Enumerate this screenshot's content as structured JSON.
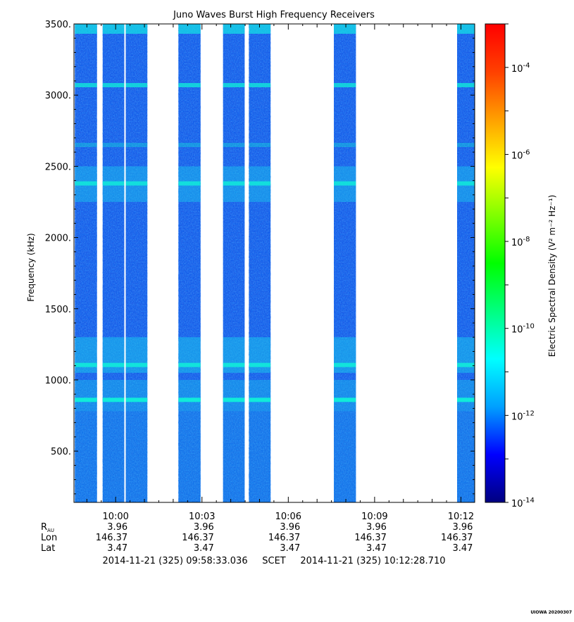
{
  "chart_data": {
    "type": "heatmap",
    "title": "Juno Waves Burst High Frequency Receivers",
    "ylabel": "Frequency (kHz)",
    "ylim": [
      140,
      3500
    ],
    "y_ticks": [
      {
        "value": 500,
        "label": "500."
      },
      {
        "value": 1000,
        "label": "1000."
      },
      {
        "value": 1500,
        "label": "1500."
      },
      {
        "value": 2000,
        "label": "2000."
      },
      {
        "value": 2500,
        "label": "2500."
      },
      {
        "value": 3000,
        "label": "3000."
      },
      {
        "value": 3500,
        "label": "3500."
      }
    ],
    "x_start": "2014-11-21T09:58:33.036",
    "x_end": "2014-11-21T10:12:28.710",
    "x_ticks": [
      {
        "time": "2014-11-21T10:00:00",
        "label": "10:00"
      },
      {
        "time": "2014-11-21T10:03:00",
        "label": "10:03"
      },
      {
        "time": "2014-11-21T10:06:00",
        "label": "10:06"
      },
      {
        "time": "2014-11-21T10:09:00",
        "label": "10:09"
      },
      {
        "time": "2014-11-21T10:12:00",
        "label": "10:12"
      }
    ],
    "data_intervals": [
      {
        "start": "2014-11-21T09:58:35",
        "end": "2014-11-21T09:59:21"
      },
      {
        "start": "2014-11-21T09:59:33",
        "end": "2014-11-21T10:00:18"
      },
      {
        "start": "2014-11-21T10:00:21",
        "end": "2014-11-21T10:01:06"
      },
      {
        "start": "2014-11-21T10:02:11",
        "end": "2014-11-21T10:02:57"
      },
      {
        "start": "2014-11-21T10:03:44",
        "end": "2014-11-21T10:04:29"
      },
      {
        "start": "2014-11-21T10:04:38",
        "end": "2014-11-21T10:05:23"
      },
      {
        "start": "2014-11-21T10:07:35",
        "end": "2014-11-21T10:08:21"
      },
      {
        "start": "2014-11-21T10:11:52",
        "end": "2014-11-21T10:12:28"
      }
    ],
    "bright_bands_khz": [
      {
        "freq": 3070,
        "level": 0.75
      },
      {
        "freq": 2650,
        "level": 0.35
      },
      {
        "freq": 2380,
        "level": 0.8
      },
      {
        "freq": 1105,
        "level": 0.85
      },
      {
        "freq": 860,
        "level": 0.95
      }
    ],
    "colorbar": {
      "label": "Electric Spectral Density (V² m⁻² Hz⁻¹)",
      "scale": "log",
      "range": [
        1e-14,
        0.001
      ],
      "colors": [
        "#000080",
        "#0000ff",
        "#00a0ff",
        "#00ffff",
        "#00ff80",
        "#00ff00",
        "#80ff00",
        "#ffff00",
        "#ffa000",
        "#ff4000",
        "#ff0000"
      ],
      "ticks": [
        {
          "value": "1e-14",
          "base": "10",
          "exp": "-14"
        },
        {
          "value": "1e-12",
          "base": "10",
          "exp": "-12"
        },
        {
          "value": "1e-10",
          "base": "10",
          "exp": "-10"
        },
        {
          "value": "1e-8",
          "base": "10",
          "exp": "-8"
        },
        {
          "value": "1e-6",
          "base": "10",
          "exp": "-6"
        },
        {
          "value": "1e-4",
          "base": "10",
          "exp": "-4"
        }
      ]
    },
    "ephemeris": {
      "rows": [
        {
          "name": "R",
          "sub": "AU",
          "values": [
            "3.96",
            "3.96",
            "3.96",
            "3.96",
            "3.96"
          ]
        },
        {
          "name": "Lon",
          "sub": "",
          "values": [
            "146.37",
            "146.37",
            "146.37",
            "146.37",
            "146.37"
          ]
        },
        {
          "name": "Lat",
          "sub": "",
          "values": [
            "3.47",
            "3.47",
            "3.47",
            "3.47",
            "3.47"
          ]
        }
      ]
    },
    "time_range_text": "2014-11-21 (325) 09:58:33.036     SCET     2014-11-21 (325) 10:12:28.710"
  },
  "footer_stamp": "UIOWA 20200307"
}
